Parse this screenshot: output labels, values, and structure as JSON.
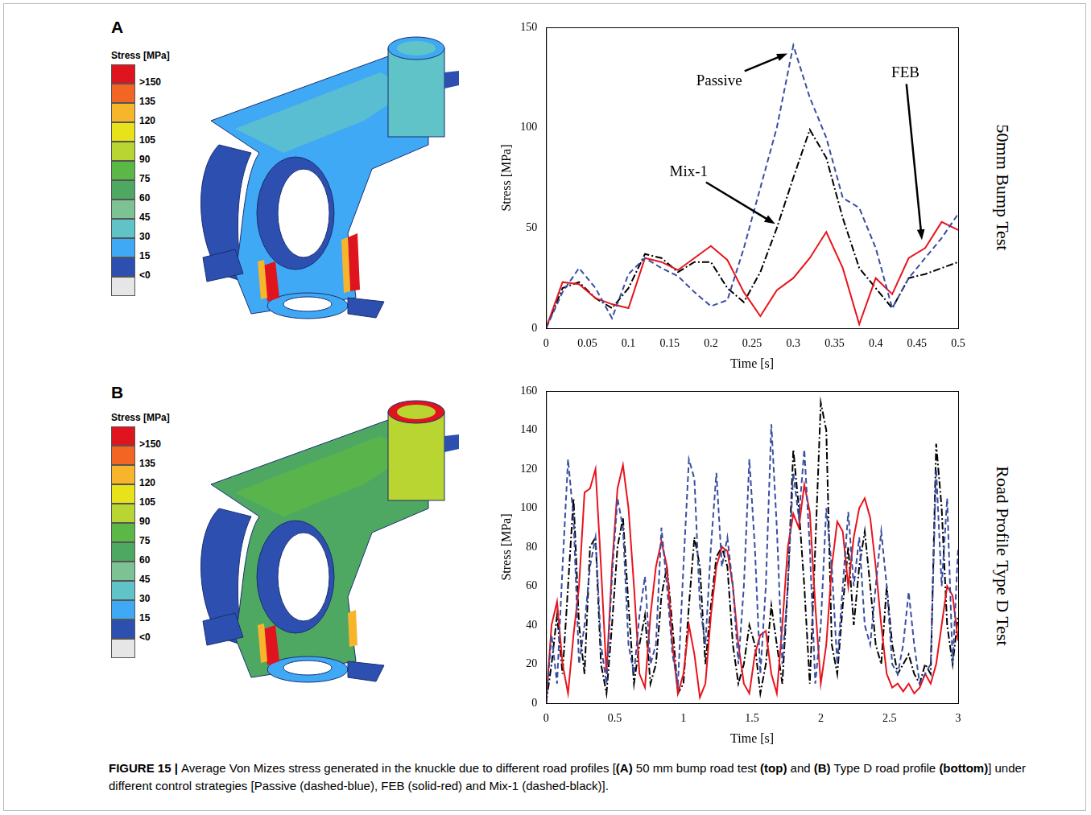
{
  "chart_data": [
    {
      "type": "line",
      "panel": "A",
      "title": "50mm Bump Test",
      "x_label": "Time [s]",
      "y_label": "Stress [MPa]",
      "x": [
        0,
        0.02,
        0.04,
        0.06,
        0.08,
        0.1,
        0.12,
        0.14,
        0.16,
        0.18,
        0.2,
        0.22,
        0.24,
        0.26,
        0.28,
        0.3,
        0.32,
        0.34,
        0.36,
        0.38,
        0.4,
        0.42,
        0.44,
        0.46,
        0.48,
        0.5
      ],
      "series": [
        {
          "name": "Passive",
          "color": "#3a4ea0",
          "line_style": "dashed",
          "values": [
            0,
            18,
            30,
            20,
            5,
            27,
            35,
            30,
            26,
            18,
            11,
            14,
            40,
            70,
            100,
            141,
            115,
            95,
            65,
            60,
            40,
            10,
            25,
            35,
            45,
            57
          ]
        },
        {
          "name": "FEB",
          "color": "#e8141c",
          "line_style": "solid",
          "values": [
            0,
            23,
            22,
            15,
            12,
            10,
            35,
            33,
            29,
            35,
            41,
            34,
            18,
            6,
            19,
            25,
            35,
            48,
            30,
            2,
            25,
            17,
            35,
            40,
            53,
            49
          ]
        },
        {
          "name": "Mix-1",
          "color": "#000000",
          "line_style": "dashdot",
          "values": [
            0,
            20,
            23,
            15,
            10,
            20,
            37,
            35,
            28,
            33,
            33,
            20,
            13,
            28,
            50,
            75,
            99,
            85,
            55,
            30,
            20,
            10,
            25,
            27,
            30,
            33
          ]
        }
      ],
      "annotations": [
        {
          "text": "Passive",
          "x": 0.21,
          "y": 123,
          "target": [
            0.293,
            137
          ]
        },
        {
          "text": "Mix-1",
          "x": 0.173,
          "y": 78,
          "target": [
            0.278,
            52
          ]
        },
        {
          "text": "FEB",
          "x": 0.436,
          "y": 127,
          "target": [
            0.456,
            44
          ]
        }
      ],
      "xlim": [
        0,
        0.5
      ],
      "xticks": [
        0,
        0.05,
        0.1,
        0.15,
        0.2,
        0.25,
        0.3,
        0.35,
        0.4,
        0.45,
        0.5
      ],
      "ylim": [
        0,
        150
      ],
      "yticks": [
        0,
        50,
        100,
        150
      ],
      "grid": false
    },
    {
      "type": "line",
      "panel": "B",
      "title": "Road Profile Type D Test",
      "x_label": "Time [s]",
      "y_label": "Stress [MPa]",
      "x": [
        0,
        0.04,
        0.08,
        0.12,
        0.16,
        0.2,
        0.24,
        0.28,
        0.32,
        0.36,
        0.4,
        0.44,
        0.48,
        0.52,
        0.56,
        0.6,
        0.64,
        0.68,
        0.72,
        0.76,
        0.8,
        0.84,
        0.88,
        0.92,
        0.96,
        1,
        1.04,
        1.08,
        1.12,
        1.16,
        1.2,
        1.24,
        1.28,
        1.32,
        1.36,
        1.4,
        1.44,
        1.48,
        1.52,
        1.56,
        1.6,
        1.64,
        1.68,
        1.72,
        1.76,
        1.8,
        1.84,
        1.88,
        1.92,
        1.96,
        2,
        2.04,
        2.08,
        2.12,
        2.16,
        2.2,
        2.24,
        2.28,
        2.32,
        2.36,
        2.4,
        2.44,
        2.48,
        2.52,
        2.56,
        2.6,
        2.64,
        2.68,
        2.72,
        2.76,
        2.8,
        2.84,
        2.88,
        2.92,
        2.96,
        3
      ],
      "series": [
        {
          "name": "Passive",
          "color": "#3a4ea0",
          "line_style": "dashed",
          "values": [
            0,
            35,
            10,
            70,
            125,
            95,
            20,
            40,
            70,
            85,
            30,
            10,
            65,
            105,
            90,
            30,
            15,
            45,
            65,
            20,
            30,
            90,
            60,
            25,
            10,
            70,
            125,
            115,
            50,
            30,
            80,
            118,
            70,
            85,
            60,
            20,
            60,
            125,
            80,
            15,
            60,
            143,
            90,
            20,
            60,
            118,
            95,
            130,
            80,
            10,
            40,
            100,
            70,
            20,
            60,
            98,
            60,
            85,
            40,
            30,
            60,
            88,
            60,
            20,
            15,
            30,
            57,
            30,
            10,
            15,
            20,
            120,
            60,
            105,
            20,
            80
          ]
        },
        {
          "name": "FEB",
          "color": "#e8141c",
          "line_style": "solid",
          "values": [
            0,
            40,
            52,
            20,
            5,
            35,
            60,
            108,
            110,
            120,
            70,
            15,
            70,
            110,
            122,
            100,
            60,
            15,
            8,
            45,
            70,
            83,
            70,
            30,
            5,
            15,
            40,
            25,
            3,
            10,
            45,
            70,
            80,
            78,
            60,
            30,
            10,
            5,
            25,
            35,
            37,
            15,
            5,
            40,
            80,
            97,
            90,
            112,
            98,
            50,
            10,
            30,
            70,
            93,
            88,
            60,
            85,
            100,
            105,
            95,
            70,
            40,
            15,
            8,
            10,
            6,
            10,
            5,
            8,
            15,
            10,
            20,
            40,
            60,
            55,
            32
          ]
        },
        {
          "name": "Mix-1",
          "color": "#000000",
          "line_style": "dashdot",
          "values": [
            0,
            20,
            45,
            15,
            60,
            105,
            40,
            15,
            80,
            85,
            20,
            5,
            40,
            80,
            95,
            50,
            10,
            30,
            45,
            10,
            20,
            55,
            70,
            40,
            5,
            10,
            50,
            85,
            70,
            20,
            50,
            75,
            80,
            70,
            30,
            10,
            20,
            40,
            30,
            5,
            20,
            50,
            30,
            10,
            60,
            130,
            100,
            60,
            10,
            80,
            154,
            140,
            30,
            15,
            50,
            80,
            40,
            70,
            88,
            60,
            30,
            20,
            60,
            30,
            15,
            20,
            25,
            15,
            10,
            20,
            15,
            133,
            100,
            40,
            20,
            45
          ]
        }
      ],
      "xlim": [
        0,
        3
      ],
      "xticks": [
        0,
        0.5,
        1,
        1.5,
        2,
        2.5,
        3
      ],
      "ylim": [
        0,
        160
      ],
      "yticks": [
        0,
        20,
        40,
        60,
        80,
        100,
        120,
        140,
        160
      ],
      "grid": false
    }
  ],
  "colorbars": [
    {
      "panel": "A",
      "title": "Stress [MPa]",
      "labels": [
        ">150",
        "135",
        "120",
        "105",
        "90",
        "75",
        "60",
        "45",
        "30",
        "15",
        "<0"
      ],
      "colors": [
        "#e0141e",
        "#f26522",
        "#f7b52c",
        "#e8e21b",
        "#b9d532",
        "#5bb846",
        "#4fa862",
        "#7cc294",
        "#60c3c8",
        "#3fa9f5",
        "#2d4fb0",
        "#e6e6e6"
      ]
    },
    {
      "panel": "B",
      "title": "Stress [MPa]",
      "labels": [
        ">150",
        "135",
        "120",
        "105",
        "90",
        "75",
        "60",
        "45",
        "30",
        "15",
        "<0"
      ],
      "colors": [
        "#e0141e",
        "#f26522",
        "#f7b52c",
        "#e8e21b",
        "#b9d532",
        "#5bb846",
        "#4fa862",
        "#7cc294",
        "#60c3c8",
        "#3fa9f5",
        "#2d4fb0",
        "#e6e6e6"
      ]
    }
  ],
  "caption": [
    {
      "text": "FIGURE 15 | ",
      "bold": true
    },
    {
      "text": "Average Von Mizes stress generated in the knuckle due to different road profiles [",
      "bold": false
    },
    {
      "text": "(A)",
      "bold": true
    },
    {
      "text": " 50 mm bump road test ",
      "bold": false
    },
    {
      "text": "(top)",
      "bold": true
    },
    {
      "text": " and ",
      "bold": false
    },
    {
      "text": "(B)",
      "bold": true
    },
    {
      "text": " Type D road profile ",
      "bold": false
    },
    {
      "text": "(bottom)",
      "bold": true
    },
    {
      "text": "] under different control strategies [Passive (dashed-blue), FEB (solid-red) and Mix-1 (dashed-black)].",
      "bold": false
    }
  ]
}
